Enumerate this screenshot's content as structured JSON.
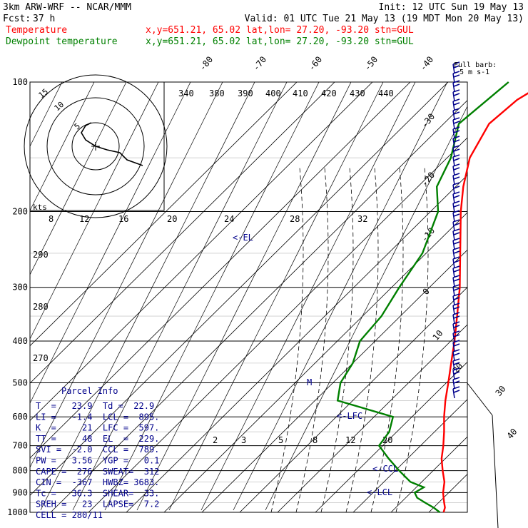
{
  "header": {
    "model": "3km ARW-WRF -- NCAR/MMM",
    "init": "Init: 12 UTC Sun 19 May 13",
    "fcst_label": "Fcst:",
    "fcst_value": "37 h",
    "valid": "Valid: 01 UTC Tue 21 May 13 (19 MDT Mon 20 May 13)",
    "temp_label": "Temperature",
    "temp_info": "x,y=651.21, 65.02   lat,lon= 27.20, -93.20   stn=GUL",
    "dew_label": "Dewpoint temperature",
    "dew_info": "x,y=651.21, 65.02   lat,lon= 27.20, -93.20   stn=GUL",
    "temp_color": "#ff0000",
    "dew_color": "#008000"
  },
  "chart_data": {
    "type": "line",
    "y_axis": "pressure (hPa), log scale",
    "pressure_levels": [
      100,
      200,
      300,
      400,
      500,
      600,
      700,
      800,
      900,
      1000
    ],
    "skew_temp_labels": [
      "-80",
      "-70",
      "-60",
      "-50",
      "-40",
      "-30",
      "-20",
      "-10",
      "0",
      "10",
      "20",
      "30",
      "40"
    ],
    "theta_labels": [
      "340",
      "380",
      "390",
      "400",
      "410",
      "420",
      "430",
      "440",
      "290",
      "280",
      "270"
    ],
    "mixing_ratio_labels": [
      "2",
      "3",
      "5",
      "8",
      "12",
      "20"
    ],
    "hodograph": {
      "unit_label": "kts",
      "ring_labels": [
        "5",
        "10",
        "15"
      ],
      "speed_ticks": [
        "8",
        "12",
        "16",
        "20",
        "24",
        "28",
        "32"
      ]
    },
    "barb_legend": [
      "Full barb:",
      "5 m s-1"
    ],
    "annotations": [
      "<-EL",
      "<-LFC",
      "<-CCL",
      "<-LCL",
      "M"
    ],
    "series": [
      {
        "name": "Temperature",
        "color": "#ff0000",
        "points": [
          [
            1000,
            23.9
          ],
          [
            975,
            23
          ],
          [
            950,
            21.5
          ],
          [
            925,
            20
          ],
          [
            900,
            18.5
          ],
          [
            850,
            16
          ],
          [
            800,
            12.5
          ],
          [
            750,
            9
          ],
          [
            700,
            6
          ],
          [
            650,
            2.5
          ],
          [
            600,
            -1.5
          ],
          [
            550,
            -5.5
          ],
          [
            500,
            -9.5
          ],
          [
            450,
            -14
          ],
          [
            400,
            -19
          ],
          [
            350,
            -25
          ],
          [
            300,
            -32
          ],
          [
            250,
            -41
          ],
          [
            200,
            -52
          ],
          [
            175,
            -58
          ],
          [
            150,
            -64
          ],
          [
            125,
            -68
          ],
          [
            110,
            -67
          ],
          [
            100,
            -64
          ]
        ]
      },
      {
        "name": "Dewpoint temperature",
        "color": "#008000",
        "points": [
          [
            1000,
            22.9
          ],
          [
            975,
            20
          ],
          [
            950,
            16.5
          ],
          [
            925,
            13
          ],
          [
            900,
            11
          ],
          [
            875,
            12
          ],
          [
            850,
            7
          ],
          [
            800,
            1
          ],
          [
            750,
            -5
          ],
          [
            700,
            -11
          ],
          [
            650,
            -12
          ],
          [
            600,
            -15
          ],
          [
            550,
            -34
          ],
          [
            500,
            -38
          ],
          [
            450,
            -40
          ],
          [
            400,
            -44
          ],
          [
            350,
            -45
          ],
          [
            300,
            -48
          ],
          [
            250,
            -51
          ],
          [
            200,
            -58
          ],
          [
            175,
            -65
          ],
          [
            150,
            -69
          ],
          [
            125,
            -76
          ],
          [
            100,
            -74
          ]
        ]
      }
    ]
  },
  "parcel_info": {
    "title": "Parcel Info",
    "rows": [
      "T  =   23.9  Td =  22.9",
      "LI =   -1.4  LCL =  895.",
      "K  =     21  LFC =  597.",
      "TT =     48  EL  =  229.",
      "SVI =  -2.0  CCL =  789.",
      "PW =   3.56  YGP =   0.1",
      "CAPE =  276  SWEAT=  312",
      "CIN =  -367  HWBZ= 3683.",
      "Tc =   36.3  SHEAR=  33.",
      "SREH =   23  LAPSE=  7.2",
      "CELL = 280/11"
    ]
  }
}
